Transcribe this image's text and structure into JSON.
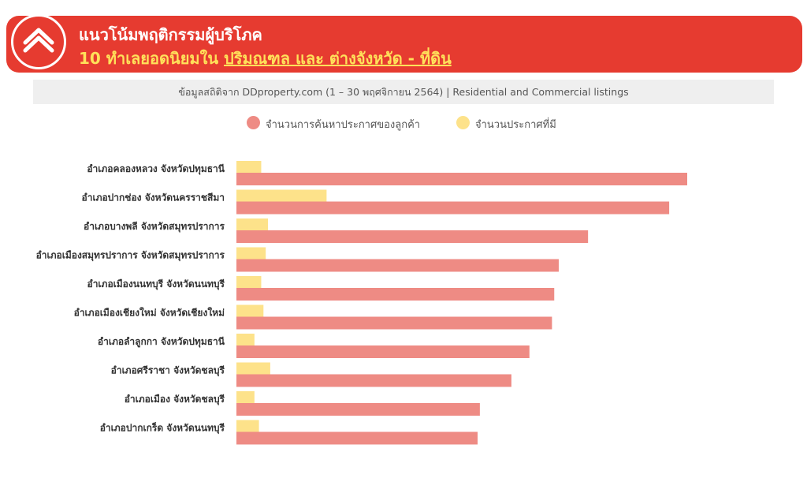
{
  "header": {
    "title_line1": "แนวโน้มพฤติกรรมผู้บริโภค",
    "title_line2_prefix": "10 ทำเลยอดนิยมใน ",
    "title_line2_underlined": "ปริมณฑล และ ต่างจังหวัด - ที่ดิน",
    "logo_icon": "ddproperty-house-logo-icon"
  },
  "subtitle": "ข้อมูลสถิติจาก DDproperty.com (1 – 30 พฤศจิกายน 2564) | Residential and Commercial listings",
  "colors": {
    "brand_red": "#e63b30",
    "title_yellow": "#ffe15a",
    "demand": "#ee8b84",
    "supply": "#fde28a"
  },
  "chart_data": {
    "type": "bar",
    "orientation": "horizontal",
    "grid": false,
    "legend_position": "top",
    "categories": [
      "อำเภอคลองหลวง จังหวัดปทุมธานี",
      "อำเภอปากช่อง จังหวัดนครราชสีมา",
      "อำเภอบางพลี จังหวัดสมุทรปราการ",
      "อำเภอเมืองสมุทรปราการ จังหวัดสมุทรปราการ",
      "อำเภอเมืองนนทบุรี จังหวัดนนทบุรี",
      "อำเภอเมืองเชียงใหม่ จังหวัดเชียงใหม่",
      "อำเภอลำลูกกา จังหวัดปทุมธานี",
      "อำเภอศรีราชา จังหวัดชลบุรี",
      "อำเภอเมือง จังหวัดชลบุรี",
      "อำเภอปากเกร็ด จังหวัดนนทบุรี"
    ],
    "series": [
      {
        "name": "จำนวนการค้นหาประกาศของลูกค้า",
        "color": "#ee8b84",
        "values": [
          100,
          96,
          78,
          71.5,
          70.5,
          70,
          65,
          61,
          54,
          53.5
        ]
      },
      {
        "name": "จำนวนประกาศที่มี",
        "color": "#fde28a",
        "values": [
          5.5,
          20,
          7,
          6.5,
          5.5,
          6,
          4,
          7.5,
          4,
          5
        ]
      }
    ]
  }
}
